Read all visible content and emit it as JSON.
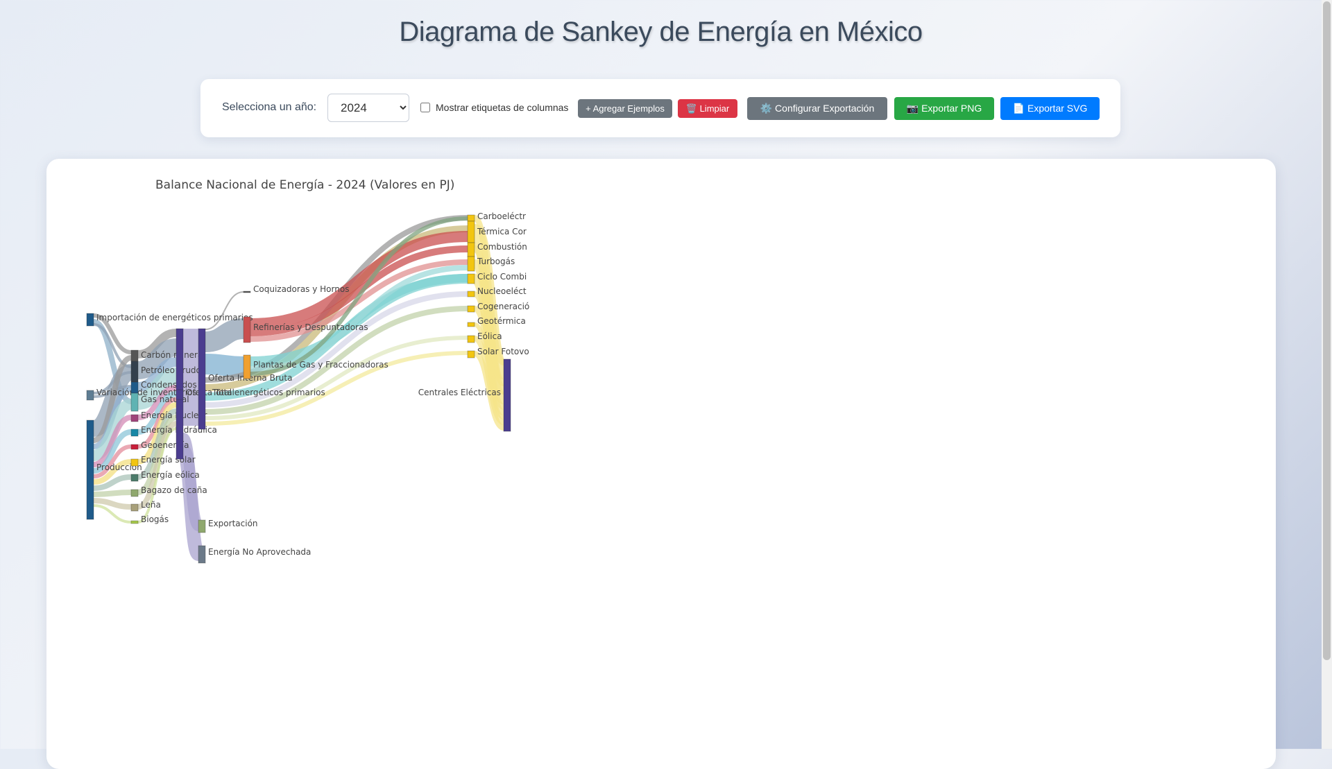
{
  "page": {
    "title": "Diagrama de Sankey de Energía en México"
  },
  "controls": {
    "year_label": "Selecciona un año:",
    "year_value": "2024",
    "column_labels_checkbox": "Mostrar etiquetas de columnas",
    "add_examples": "+ Agregar Ejemplos",
    "clear": "🗑️ Limpiar",
    "configure_export": "⚙️ Configurar Exportación",
    "export_png": "📷 Exportar PNG",
    "export_svg": "📄 Exportar SVG"
  },
  "chart_data": {
    "type": "sankey",
    "title": "Balance Nacional de Energía - 2024 (Valores en PJ)",
    "nodes": [
      {
        "id": "importacion",
        "label": "Importación de energéticos primarios",
        "color": "#1f5b8a"
      },
      {
        "id": "variacion",
        "label": "Variación de inventarios",
        "color": "#5e7d93"
      },
      {
        "id": "produccion",
        "label": "Producción",
        "color": "#1f5b8a"
      },
      {
        "id": "carbon",
        "label": "Carbón mineral",
        "color": "#555555"
      },
      {
        "id": "petroleo",
        "label": "Petróleo crudo",
        "color": "#33404d"
      },
      {
        "id": "condensados",
        "label": "Condensados",
        "color": "#1f5b8a"
      },
      {
        "id": "gas",
        "label": "Gas natural",
        "color": "#5fb3b3"
      },
      {
        "id": "nuclear",
        "label": "Energía Nuclear",
        "color": "#a0437a"
      },
      {
        "id": "hidraulica",
        "label": "Energía Hidráulica",
        "color": "#1787a5"
      },
      {
        "id": "geoenergia",
        "label": "Geoenergía",
        "color": "#c81e3a"
      },
      {
        "id": "solar",
        "label": "Energía solar",
        "color": "#f2c511"
      },
      {
        "id": "eolica",
        "label": "Energía eólica",
        "color": "#4c7c6b"
      },
      {
        "id": "bagazo",
        "label": "Bagazo de caña",
        "color": "#8fa86e"
      },
      {
        "id": "lena",
        "label": "Leña",
        "color": "#a8a07a"
      },
      {
        "id": "biogas",
        "label": "Biogás",
        "color": "#a6c84a"
      },
      {
        "id": "oferta_total",
        "label": "Oferta Total",
        "color": "#4b3d8f"
      },
      {
        "id": "oferta_interna",
        "label": "Oferta Interna Bruta",
        "color": "#4b3d8f"
      },
      {
        "id": "total_primarios",
        "label": "Total energéticos primarios",
        "color": "#4b3d8f"
      },
      {
        "id": "exportacion",
        "label": "Exportación",
        "color": "#8fa86e"
      },
      {
        "id": "no_aprovechada",
        "label": "Energía No Aprovechada",
        "color": "#6c7a89"
      },
      {
        "id": "coquizadoras",
        "label": "Coquizadoras y Hornos",
        "color": "#555555"
      },
      {
        "id": "refinerias",
        "label": "Refinerías y Despuntadoras",
        "color": "#c94f4f"
      },
      {
        "id": "plantas_gas",
        "label": "Plantas de Gas y Fraccionadoras",
        "color": "#f0a030"
      },
      {
        "id": "carboelectrica",
        "label": "Carboeléctr",
        "color": "#f2c511"
      },
      {
        "id": "termica",
        "label": "Térmica Cor",
        "color": "#f2c511"
      },
      {
        "id": "combustion",
        "label": "Combustión",
        "color": "#f2c511"
      },
      {
        "id": "turbogas",
        "label": "Turbogás",
        "color": "#f2c511"
      },
      {
        "id": "ciclo",
        "label": "Ciclo Combi",
        "color": "#f2c511"
      },
      {
        "id": "nucleoelectrica",
        "label": "Nucleoeléct",
        "color": "#f2c511"
      },
      {
        "id": "cogeneracion",
        "label": "Cogeneració",
        "color": "#f2c511"
      },
      {
        "id": "geotermica",
        "label": "Geotérmica",
        "color": "#f2c511"
      },
      {
        "id": "eolica_c",
        "label": "Eólica",
        "color": "#f2c511"
      },
      {
        "id": "solar_fv",
        "label": "Solar Fotovo",
        "color": "#f2c511"
      },
      {
        "id": "centrales",
        "label": "Centrales Eléctricas",
        "color": "#4b3d8f"
      }
    ]
  }
}
